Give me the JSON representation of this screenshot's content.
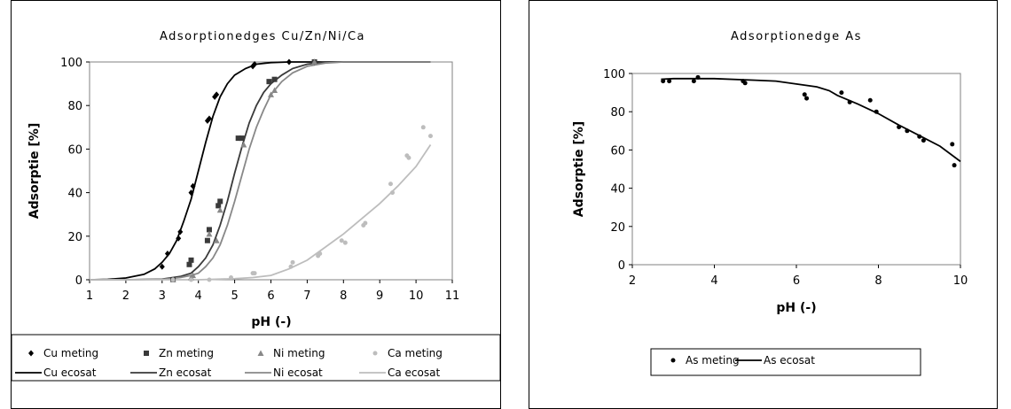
{
  "chart_data": [
    {
      "type": "scatter",
      "title": "Adsorptionedges Cu/Zn/Ni/Ca",
      "xlabel": "pH (-)",
      "ylabel": "Adsorptie [%]",
      "xlim": [
        1,
        11
      ],
      "ylim": [
        0,
        100
      ],
      "xticks": [
        1,
        2,
        3,
        4,
        5,
        6,
        7,
        8,
        9,
        10,
        11
      ],
      "yticks": [
        0,
        20,
        40,
        60,
        80,
        100
      ],
      "grid": false,
      "legend_position": "bottom",
      "colors": {
        "cu": "#000000",
        "zn": "#3a3a3a",
        "ni": "#888888",
        "ca": "#bdbdbd"
      },
      "series": [
        {
          "name": "Cu meting",
          "kind": "points",
          "marker": "diamond",
          "color_key": "cu",
          "x": [
            3.0,
            3.15,
            3.45,
            3.5,
            3.8,
            3.85,
            4.25,
            4.3,
            4.45,
            4.5,
            5.5,
            5.55,
            6.5,
            7.2
          ],
          "y": [
            6,
            12,
            19,
            22,
            40,
            43,
            73,
            74,
            84,
            85,
            98,
            99,
            100,
            100
          ]
        },
        {
          "name": "Zn meting",
          "kind": "points",
          "marker": "square",
          "color_key": "zn",
          "x": [
            3.3,
            3.75,
            3.8,
            4.25,
            4.3,
            4.55,
            4.6,
            5.1,
            5.2,
            5.95,
            6.1,
            7.2
          ],
          "y": [
            0,
            7,
            9,
            18,
            23,
            34,
            36,
            65,
            65,
            91,
            92,
            100
          ]
        },
        {
          "name": "Ni meting",
          "kind": "points",
          "marker": "triangle",
          "color_key": "ni",
          "x": [
            3.3,
            3.8,
            3.85,
            4.3,
            4.5,
            4.6,
            5.25,
            6.0,
            6.1,
            7.2
          ],
          "y": [
            0,
            1,
            2,
            21,
            18,
            32,
            62,
            85,
            87,
            100
          ]
        },
        {
          "name": "Ca meting",
          "kind": "points",
          "marker": "circle",
          "color_key": "ca",
          "x": [
            3.3,
            3.8,
            4.3,
            4.9,
            5.5,
            5.55,
            6.55,
            6.6,
            7.3,
            7.35,
            7.95,
            8.05,
            8.55,
            8.6,
            9.3,
            9.35,
            9.75,
            9.8,
            10.2,
            10.4
          ],
          "y": [
            0,
            0,
            0,
            1,
            3,
            3,
            6,
            8,
            11,
            12,
            18,
            17,
            25,
            26,
            44,
            40,
            57,
            56,
            70,
            66
          ]
        },
        {
          "name": "Cu ecosat",
          "kind": "line",
          "color_key": "cu",
          "x": [
            1,
            1.5,
            2,
            2.5,
            2.8,
            3.0,
            3.2,
            3.4,
            3.6,
            3.8,
            4.0,
            4.2,
            4.4,
            4.6,
            4.8,
            5.0,
            5.3,
            5.6,
            6.0,
            6.5,
            7.0,
            8,
            9,
            10.4
          ],
          "y": [
            0,
            0.2,
            0.8,
            2.5,
            5,
            8,
            12,
            18,
            27,
            37,
            50,
            63,
            75,
            84,
            90,
            94,
            97,
            99,
            99.7,
            100,
            100,
            100,
            100,
            100
          ]
        },
        {
          "name": "Zn ecosat",
          "kind": "line",
          "color_key": "zn",
          "x": [
            1,
            2,
            3,
            3.5,
            3.8,
            4.0,
            4.2,
            4.4,
            4.6,
            4.8,
            5.0,
            5.2,
            5.4,
            5.6,
            5.8,
            6.0,
            6.3,
            6.6,
            7.0,
            7.5,
            8,
            9,
            10.4
          ],
          "y": [
            0,
            0,
            0.3,
            1.5,
            3,
            6,
            10,
            16,
            25,
            36,
            49,
            61,
            72,
            80,
            86,
            90,
            94,
            97,
            99,
            100,
            100,
            100,
            100
          ]
        },
        {
          "name": "Ni ecosat",
          "kind": "line",
          "color_key": "ni",
          "x": [
            1,
            2,
            3,
            3.5,
            3.8,
            4.0,
            4.2,
            4.4,
            4.6,
            4.8,
            5.0,
            5.2,
            5.4,
            5.6,
            5.8,
            6.0,
            6.3,
            6.6,
            7.0,
            7.5,
            8,
            9,
            10.4
          ],
          "y": [
            0,
            0,
            0.2,
            1,
            2,
            3,
            6,
            10,
            16,
            25,
            36,
            48,
            60,
            70,
            78,
            85,
            91,
            95,
            98,
            99.5,
            100,
            100,
            100
          ]
        },
        {
          "name": "Ca ecosat",
          "kind": "line",
          "color_key": "ca",
          "x": [
            1,
            3,
            4,
            5,
            5.5,
            6.0,
            6.5,
            7.0,
            7.5,
            8.0,
            8.5,
            9.0,
            9.5,
            10.0,
            10.4
          ],
          "y": [
            0,
            0,
            0,
            0.5,
            1,
            2,
            5,
            9,
            15,
            21,
            28,
            35,
            43,
            52,
            62
          ]
        }
      ]
    },
    {
      "type": "scatter",
      "title": "Adsorptionedge As",
      "xlabel": "pH (-)",
      "ylabel": "Adsorptie [%]",
      "xlim": [
        2,
        10
      ],
      "ylim": [
        0,
        100
      ],
      "xticks": [
        2,
        4,
        6,
        8,
        10
      ],
      "yticks": [
        0,
        20,
        40,
        60,
        80,
        100
      ],
      "grid": false,
      "legend_position": "bottom",
      "colors": {
        "as": "#000000"
      },
      "series": [
        {
          "name": "As meting",
          "kind": "points",
          "marker": "circle",
          "color_key": "as",
          "x": [
            2.75,
            2.9,
            3.5,
            3.6,
            4.7,
            4.75,
            6.2,
            6.25,
            7.1,
            7.3,
            7.8,
            7.95,
            8.5,
            8.7,
            9.0,
            9.1,
            9.8,
            9.85
          ],
          "y": [
            96,
            96,
            96,
            98,
            96,
            95,
            89,
            87,
            90,
            85,
            86,
            80,
            72,
            70,
            67,
            65,
            63,
            52
          ]
        },
        {
          "name": "As ecosat",
          "kind": "line",
          "color_key": "as",
          "x": [
            2.7,
            3.0,
            4.0,
            5.0,
            5.5,
            6.0,
            6.5,
            6.8,
            7.0,
            7.5,
            8.0,
            8.5,
            9.0,
            9.5,
            10.0
          ],
          "y": [
            97,
            97.3,
            97.3,
            96.5,
            96,
            94.5,
            93,
            91,
            88.5,
            84,
            79,
            73,
            67.5,
            62,
            54
          ]
        }
      ]
    }
  ]
}
